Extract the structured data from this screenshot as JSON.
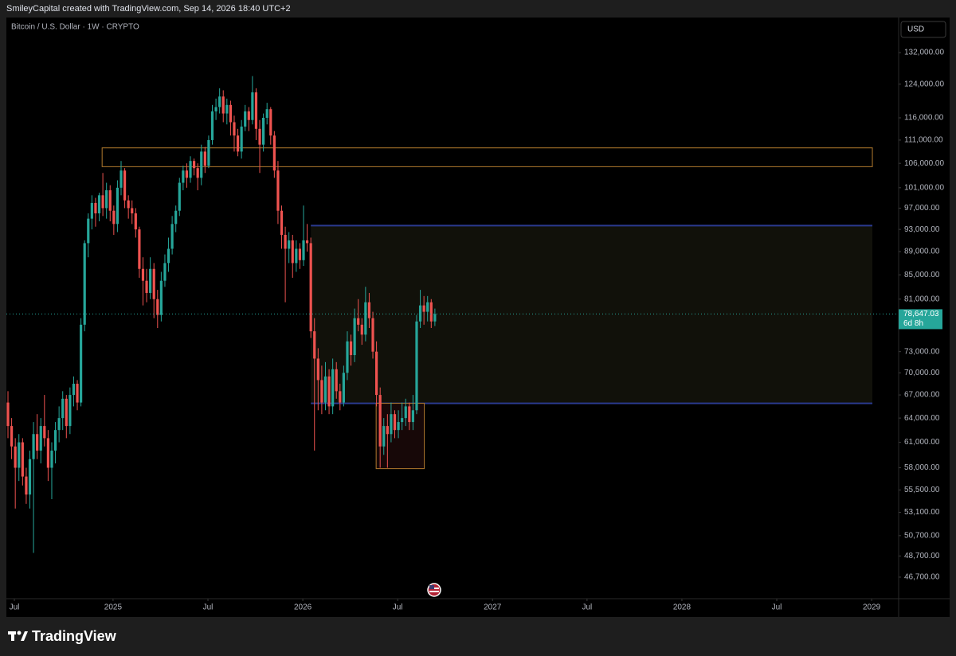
{
  "header": {
    "caption": "SmileyCapital created with TradingView.com, Sep 14, 2026 18:40 UTC+2"
  },
  "chart_data": {
    "type": "candlestick",
    "title": "Bitcoin / U.S. Dollar · 1W · CRYPTO",
    "currency": "USD",
    "log_scale": true,
    "grid": false,
    "up_color": "#26a69a",
    "down_color": "#ef5350",
    "candles": [
      [
        66000,
        67500,
        61500,
        63000
      ],
      [
        63000,
        64000,
        59000,
        60500
      ],
      [
        60500,
        61500,
        53500,
        58000
      ],
      [
        58000,
        62000,
        56500,
        61000
      ],
      [
        61000,
        61500,
        56000,
        57000
      ],
      [
        57000,
        58000,
        54000,
        55000
      ],
      [
        55000,
        60000,
        53500,
        59000
      ],
      [
        59000,
        63500,
        49000,
        62000
      ],
      [
        62000,
        64500,
        59000,
        60000
      ],
      [
        60000,
        64000,
        58500,
        63000
      ],
      [
        63000,
        67000,
        60500,
        61500
      ],
      [
        61500,
        62500,
        56500,
        58000
      ],
      [
        58000,
        61000,
        54500,
        60000
      ],
      [
        60000,
        63500,
        58500,
        62500
      ],
      [
        62500,
        65500,
        61000,
        64000
      ],
      [
        64000,
        67500,
        62500,
        66500
      ],
      [
        66500,
        67000,
        61500,
        63000
      ],
      [
        63000,
        68000,
        62000,
        67000
      ],
      [
        67000,
        69500,
        65500,
        68500
      ],
      [
        68500,
        69000,
        65000,
        66000
      ],
      [
        66000,
        78000,
        65500,
        77000
      ],
      [
        77000,
        91000,
        76000,
        90500
      ],
      [
        90500,
        96000,
        88000,
        95000
      ],
      [
        95000,
        99500,
        93000,
        98000
      ],
      [
        98000,
        99000,
        93500,
        96000
      ],
      [
        96000,
        100000,
        94500,
        99500
      ],
      [
        99500,
        104000,
        95500,
        97000
      ],
      [
        97000,
        102000,
        95000,
        100500
      ],
      [
        100500,
        101500,
        94500,
        96500
      ],
      [
        96500,
        97500,
        92000,
        94000
      ],
      [
        94000,
        102500,
        92500,
        101000
      ],
      [
        101000,
        106500,
        99500,
        104500
      ],
      [
        104500,
        105000,
        97000,
        98500
      ],
      [
        98500,
        99500,
        95000,
        97000
      ],
      [
        97000,
        98500,
        94000,
        96000
      ],
      [
        96000,
        97000,
        91500,
        93000
      ],
      [
        93000,
        93500,
        84500,
        86000
      ],
      [
        86000,
        88000,
        80000,
        84000
      ],
      [
        84000,
        86000,
        80500,
        82000
      ],
      [
        82000,
        88000,
        81000,
        86000
      ],
      [
        86000,
        87000,
        78000,
        81000
      ],
      [
        81000,
        82500,
        76500,
        78500
      ],
      [
        78500,
        85500,
        77500,
        84000
      ],
      [
        84000,
        88500,
        83000,
        87000
      ],
      [
        87000,
        91500,
        85500,
        89500
      ],
      [
        89500,
        95500,
        88500,
        94000
      ],
      [
        94000,
        97500,
        92500,
        96500
      ],
      [
        96500,
        103000,
        95500,
        102000
      ],
      [
        102000,
        105500,
        100500,
        104500
      ],
      [
        104500,
        106000,
        101000,
        103000
      ],
      [
        103000,
        107500,
        102000,
        106500
      ],
      [
        106500,
        107000,
        103500,
        105000
      ],
      [
        105000,
        106000,
        100500,
        103000
      ],
      [
        103000,
        110000,
        101500,
        108500
      ],
      [
        108500,
        109500,
        104000,
        105500
      ],
      [
        105500,
        112000,
        105000,
        111000
      ],
      [
        111000,
        119000,
        110000,
        117500
      ],
      [
        117500,
        120500,
        115500,
        118500
      ],
      [
        118500,
        123000,
        117000,
        121000
      ],
      [
        121000,
        122500,
        115000,
        117000
      ],
      [
        117000,
        120500,
        114500,
        119000
      ],
      [
        119000,
        120000,
        112000,
        115000
      ],
      [
        115000,
        116500,
        108500,
        112000
      ],
      [
        112000,
        113500,
        107500,
        108500
      ],
      [
        108500,
        115500,
        107000,
        114000
      ],
      [
        114000,
        119000,
        113000,
        117500
      ],
      [
        117500,
        118500,
        113000,
        115500
      ],
      [
        115500,
        126000,
        114500,
        122000
      ],
      [
        122000,
        123000,
        111000,
        113500
      ],
      [
        113500,
        115500,
        104000,
        110000
      ],
      [
        110000,
        117000,
        108500,
        116000
      ],
      [
        116000,
        119500,
        114500,
        118000
      ],
      [
        118000,
        118500,
        110000,
        112000
      ],
      [
        112000,
        113000,
        103000,
        104500
      ],
      [
        104500,
        106500,
        94000,
        96500
      ],
      [
        96500,
        97500,
        89500,
        92000
      ],
      [
        92000,
        93500,
        80500,
        89500
      ],
      [
        89500,
        92500,
        87000,
        91000
      ],
      [
        91000,
        92000,
        84500,
        87000
      ],
      [
        87000,
        91000,
        85500,
        89500
      ],
      [
        89500,
        90500,
        86000,
        87500
      ],
      [
        87500,
        97500,
        86500,
        91000
      ],
      [
        91000,
        94000,
        89000,
        90500
      ],
      [
        90500,
        91500,
        75000,
        76000
      ],
      [
        76000,
        78000,
        60000,
        72000
      ],
      [
        72000,
        73500,
        65000,
        69000
      ],
      [
        69000,
        71000,
        64500,
        66000
      ],
      [
        66000,
        71500,
        65000,
        69500
      ],
      [
        69500,
        70500,
        64500,
        65500
      ],
      [
        65500,
        72000,
        64500,
        70500
      ],
      [
        70500,
        71500,
        66500,
        67500
      ],
      [
        67500,
        68500,
        65000,
        66000
      ],
      [
        66000,
        71000,
        65500,
        70000
      ],
      [
        70000,
        76000,
        69000,
        74500
      ],
      [
        74500,
        75500,
        71000,
        72500
      ],
      [
        72500,
        79500,
        71500,
        78000
      ],
      [
        78000,
        81000,
        76000,
        77000
      ],
      [
        77000,
        78000,
        74000,
        75500
      ],
      [
        75500,
        83000,
        74500,
        80500
      ],
      [
        80500,
        82000,
        76500,
        78000
      ],
      [
        78000,
        79000,
        72000,
        73000
      ],
      [
        73000,
        74500,
        65500,
        67000
      ],
      [
        67000,
        68000,
        58000,
        60500
      ],
      [
        60500,
        64000,
        59500,
        63000
      ],
      [
        63000,
        64500,
        58000,
        62000
      ],
      [
        62000,
        66000,
        61000,
        64500
      ],
      [
        64500,
        65000,
        61500,
        62500
      ],
      [
        62500,
        65000,
        61500,
        63500
      ],
      [
        63500,
        66000,
        62500,
        64000
      ],
      [
        64000,
        66500,
        63000,
        65500
      ],
      [
        65500,
        66000,
        62500,
        63500
      ],
      [
        63500,
        67000,
        62500,
        65000
      ],
      [
        65000,
        78500,
        64500,
        77500
      ],
      [
        77500,
        82500,
        76500,
        80000
      ],
      [
        80000,
        81500,
        77000,
        79000
      ],
      [
        79000,
        81500,
        77500,
        80500
      ],
      [
        80500,
        81000,
        76500,
        77500
      ],
      [
        77500,
        79500,
        76800,
        78647.03
      ]
    ],
    "ylim": [
      44750,
      141500
    ],
    "yticks": [
      {
        "value": 132000,
        "label": "132,000.00"
      },
      {
        "value": 124000,
        "label": "124,000.00"
      },
      {
        "value": 116000,
        "label": "116,000.00"
      },
      {
        "value": 111000,
        "label": "111,000.00"
      },
      {
        "value": 106000,
        "label": "106,000.00"
      },
      {
        "value": 101000,
        "label": "101,000.00"
      },
      {
        "value": 97000,
        "label": "97,000.00"
      },
      {
        "value": 93000,
        "label": "93,000.00"
      },
      {
        "value": 89000,
        "label": "89,000.00"
      },
      {
        "value": 85000,
        "label": "85,000.00"
      },
      {
        "value": 81000,
        "label": "81,000.00"
      },
      {
        "value": 73000,
        "label": "73,000.00"
      },
      {
        "value": 70000,
        "label": "70,000.00"
      },
      {
        "value": 67000,
        "label": "67,000.00"
      },
      {
        "value": 64000,
        "label": "64,000.00"
      },
      {
        "value": 61000,
        "label": "61,000.00"
      },
      {
        "value": 58000,
        "label": "58,000.00"
      },
      {
        "value": 55500,
        "label": "55,500.00"
      },
      {
        "value": 53100,
        "label": "53,100.00"
      },
      {
        "value": 50700,
        "label": "50,700.00"
      },
      {
        "value": 48700,
        "label": "48,700.00"
      },
      {
        "value": 46700,
        "label": "46,700.00"
      }
    ],
    "xlim": [
      -0.44,
      244.1
    ],
    "xticks": [
      {
        "value": 1.75,
        "label": "Jul"
      },
      {
        "value": 28.8,
        "label": "2025"
      },
      {
        "value": 54.8,
        "label": "Jul"
      },
      {
        "value": 80.8,
        "label": "2026"
      },
      {
        "value": 106.8,
        "label": "Jul"
      },
      {
        "value": 132.8,
        "label": "2027"
      },
      {
        "value": 158.7,
        "label": "Jul"
      },
      {
        "value": 184.7,
        "label": "2028"
      },
      {
        "value": 210.7,
        "label": "Jul"
      },
      {
        "value": 236.7,
        "label": "2029"
      }
    ],
    "zones": [
      {
        "x": [
          83,
          236.9
        ],
        "y": [
          65900,
          93700
        ],
        "fill": "#11110a",
        "stroke": "#2b3a8f",
        "border": "horizontal"
      },
      {
        "x": [
          25.8,
          236.9
        ],
        "y": [
          105300,
          109300
        ],
        "fill": "none",
        "stroke": "#b27a2e",
        "border": "box"
      },
      {
        "x": [
          100.9,
          114.1
        ],
        "y": [
          57900,
          65900
        ],
        "fill": "#170808",
        "stroke": "#b27a2e",
        "border": "box"
      }
    ],
    "last_price_label": "78,647.03",
    "countdown": "6d 8h"
  },
  "footer": {
    "brand": "TradingView"
  }
}
